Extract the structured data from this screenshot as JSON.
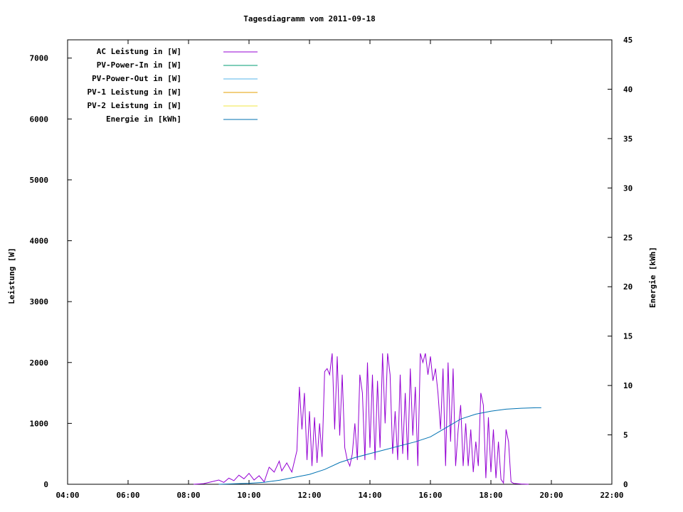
{
  "chart_data": {
    "type": "line",
    "title": "Tagesdiagramm vom 2011-09-18",
    "xlabel": "",
    "ylabel": "Leistung [W]",
    "y2label": "Energie [kWh]",
    "xlim": [
      "04:00",
      "22:00"
    ],
    "ylim": [
      0,
      7300
    ],
    "y2lim": [
      0,
      45
    ],
    "x_ticks": [
      "04:00",
      "06:00",
      "08:00",
      "10:00",
      "12:00",
      "14:00",
      "16:00",
      "18:00",
      "20:00",
      "22:00"
    ],
    "y_ticks": [
      0,
      1000,
      2000,
      3000,
      4000,
      5000,
      6000,
      7000
    ],
    "y2_ticks": [
      0,
      5,
      10,
      15,
      20,
      25,
      30,
      35,
      40,
      45
    ],
    "grid": false,
    "legend_position": "top-left",
    "legend": [
      {
        "label": "AC Leistung in [W]",
        "color": "#9400d3"
      },
      {
        "label": "PV-Power-In in [W]",
        "color": "#009e73"
      },
      {
        "label": "PV-Power-Out in [W]",
        "color": "#56b4e9"
      },
      {
        "label": "PV-1 Leistung in [W]",
        "color": "#e69f00"
      },
      {
        "label": "PV-2 Leistung in [W]",
        "color": "#f0e442"
      },
      {
        "label": "Energie in [kWh]",
        "color": "#0072b2"
      }
    ],
    "series": [
      {
        "name": "AC Leistung in [W]",
        "axis": "y",
        "color": "#9400d3",
        "points": [
          [
            "08:10",
            0
          ],
          [
            "08:30",
            10
          ],
          [
            "08:45",
            40
          ],
          [
            "09:00",
            70
          ],
          [
            "09:10",
            30
          ],
          [
            "09:20",
            100
          ],
          [
            "09:30",
            60
          ],
          [
            "09:40",
            150
          ],
          [
            "09:50",
            90
          ],
          [
            "10:00",
            180
          ],
          [
            "10:10",
            70
          ],
          [
            "10:20",
            140
          ],
          [
            "10:30",
            40
          ],
          [
            "10:40",
            280
          ],
          [
            "10:50",
            200
          ],
          [
            "11:00",
            380
          ],
          [
            "11:05",
            220
          ],
          [
            "11:15",
            350
          ],
          [
            "11:25",
            200
          ],
          [
            "11:35",
            550
          ],
          [
            "11:40",
            1600
          ],
          [
            "11:45",
            900
          ],
          [
            "11:50",
            1500
          ],
          [
            "11:55",
            400
          ],
          [
            "12:00",
            1200
          ],
          [
            "12:05",
            300
          ],
          [
            "12:10",
            1100
          ],
          [
            "12:15",
            350
          ],
          [
            "12:20",
            1000
          ],
          [
            "12:25",
            450
          ],
          [
            "12:30",
            1850
          ],
          [
            "12:35",
            1900
          ],
          [
            "12:40",
            1800
          ],
          [
            "12:45",
            2150
          ],
          [
            "12:50",
            900
          ],
          [
            "12:55",
            2100
          ],
          [
            "13:00",
            800
          ],
          [
            "13:05",
            1800
          ],
          [
            "13:10",
            600
          ],
          [
            "13:15",
            400
          ],
          [
            "13:20",
            300
          ],
          [
            "13:25",
            500
          ],
          [
            "13:30",
            1000
          ],
          [
            "13:35",
            400
          ],
          [
            "13:40",
            1800
          ],
          [
            "13:45",
            1500
          ],
          [
            "13:50",
            400
          ],
          [
            "13:55",
            2000
          ],
          [
            "14:00",
            600
          ],
          [
            "14:05",
            1800
          ],
          [
            "14:10",
            400
          ],
          [
            "14:15",
            1700
          ],
          [
            "14:20",
            600
          ],
          [
            "14:25",
            2150
          ],
          [
            "14:30",
            1000
          ],
          [
            "14:35",
            2150
          ],
          [
            "14:40",
            1800
          ],
          [
            "14:45",
            500
          ],
          [
            "14:50",
            1200
          ],
          [
            "14:55",
            400
          ],
          [
            "15:00",
            1800
          ],
          [
            "15:05",
            500
          ],
          [
            "15:10",
            1500
          ],
          [
            "15:15",
            400
          ],
          [
            "15:20",
            1900
          ],
          [
            "15:25",
            800
          ],
          [
            "15:30",
            1600
          ],
          [
            "15:35",
            300
          ],
          [
            "15:40",
            2150
          ],
          [
            "15:45",
            2000
          ],
          [
            "15:50",
            2150
          ],
          [
            "15:55",
            1800
          ],
          [
            "16:00",
            2100
          ],
          [
            "16:05",
            1700
          ],
          [
            "16:10",
            1900
          ],
          [
            "16:15",
            1500
          ],
          [
            "16:20",
            900
          ],
          [
            "16:25",
            1900
          ],
          [
            "16:30",
            300
          ],
          [
            "16:35",
            2000
          ],
          [
            "16:40",
            700
          ],
          [
            "16:45",
            1900
          ],
          [
            "16:50",
            300
          ],
          [
            "16:55",
            900
          ],
          [
            "17:00",
            1300
          ],
          [
            "17:05",
            300
          ],
          [
            "17:10",
            1000
          ],
          [
            "17:15",
            300
          ],
          [
            "17:20",
            900
          ],
          [
            "17:25",
            200
          ],
          [
            "17:30",
            700
          ],
          [
            "17:35",
            300
          ],
          [
            "17:40",
            1500
          ],
          [
            "17:45",
            1300
          ],
          [
            "17:50",
            100
          ],
          [
            "17:55",
            1100
          ],
          [
            "18:00",
            200
          ],
          [
            "18:05",
            900
          ],
          [
            "18:10",
            100
          ],
          [
            "18:15",
            700
          ],
          [
            "18:20",
            80
          ],
          [
            "18:25",
            20
          ],
          [
            "18:30",
            900
          ],
          [
            "18:35",
            700
          ],
          [
            "18:40",
            40
          ],
          [
            "18:45",
            15
          ],
          [
            "19:00",
            5
          ],
          [
            "19:15",
            0
          ]
        ]
      },
      {
        "name": "Energie in [kWh]",
        "axis": "y2",
        "color": "#0072b2",
        "points": [
          [
            "09:00",
            0
          ],
          [
            "10:00",
            0.1
          ],
          [
            "10:30",
            0.2
          ],
          [
            "11:00",
            0.4
          ],
          [
            "11:30",
            0.7
          ],
          [
            "12:00",
            1.0
          ],
          [
            "12:30",
            1.5
          ],
          [
            "13:00",
            2.2
          ],
          [
            "13:30",
            2.7
          ],
          [
            "14:00",
            3.1
          ],
          [
            "14:30",
            3.5
          ],
          [
            "15:00",
            3.9
          ],
          [
            "15:30",
            4.3
          ],
          [
            "16:00",
            4.8
          ],
          [
            "16:30",
            5.7
          ],
          [
            "17:00",
            6.6
          ],
          [
            "17:30",
            7.1
          ],
          [
            "18:00",
            7.4
          ],
          [
            "18:30",
            7.6
          ],
          [
            "19:00",
            7.7
          ],
          [
            "19:30",
            7.75
          ],
          [
            "19:40",
            7.75
          ]
        ]
      }
    ]
  }
}
